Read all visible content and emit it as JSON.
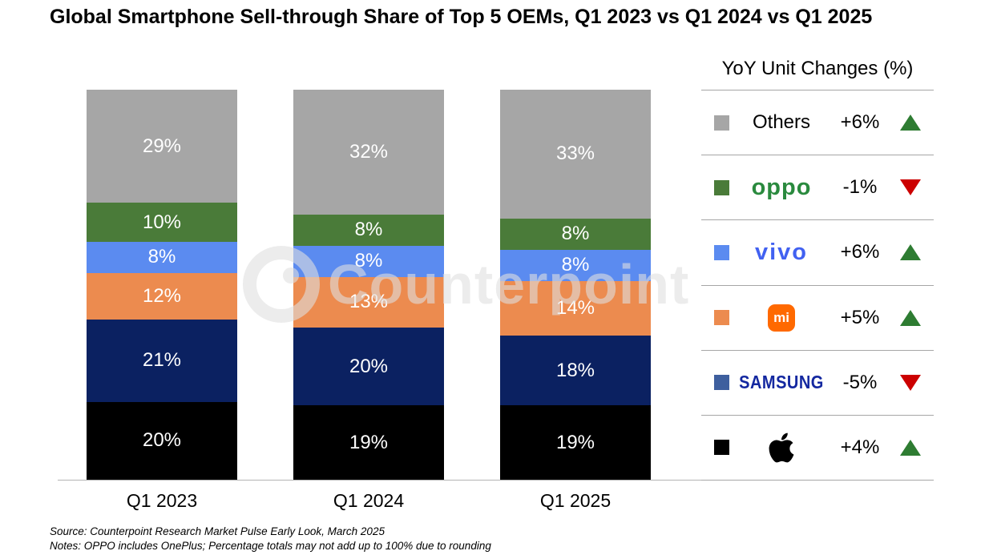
{
  "title": "Global Smartphone Sell-through Share of Top 5 OEMs, Q1 2023 vs Q1 2024 vs Q1 2025",
  "watermark": {
    "text": "Counterpoint"
  },
  "chart_data": {
    "type": "bar",
    "subtype": "stacked-100",
    "categories": [
      "Q1 2023",
      "Q1 2024",
      "Q1 2025"
    ],
    "value_suffix": "%",
    "stack_order": "bottom-to-top",
    "series": [
      {
        "name": "Apple",
        "color": "#000000",
        "values": [
          20,
          19,
          19
        ]
      },
      {
        "name": "Samsung",
        "color": "#0b2161",
        "values": [
          21,
          20,
          18
        ]
      },
      {
        "name": "Xiaomi",
        "color": "#ec8b4f",
        "values": [
          12,
          13,
          14
        ]
      },
      {
        "name": "vivo",
        "color": "#5b8bf0",
        "values": [
          8,
          8,
          8
        ]
      },
      {
        "name": "OPPO",
        "color": "#4a7b39",
        "values": [
          10,
          8,
          8
        ]
      },
      {
        "name": "Others",
        "color": "#a6a6a6",
        "values": [
          29,
          32,
          33
        ]
      }
    ],
    "ylim": [
      0,
      100
    ],
    "grid": false,
    "legend_position": "right"
  },
  "legend": {
    "header": "YoY Unit Changes (%)",
    "up_color": "#2e7c32",
    "down_color": "#cc0000",
    "rows": [
      {
        "brand": "Others",
        "change": "+6%",
        "direction": "up",
        "color": "#a6a6a6",
        "logo_color": "#000000"
      },
      {
        "brand": "oppo",
        "change": "-1%",
        "direction": "down",
        "color": "#4a7b39",
        "logo_color": "#2a8a3e"
      },
      {
        "brand": "vivo",
        "change": "+6%",
        "direction": "up",
        "color": "#5b8bf0",
        "logo_color": "#4161f1"
      },
      {
        "brand": "mi",
        "change": "+5%",
        "direction": "up",
        "color": "#ec8b4f",
        "logo_color": "#ff6900"
      },
      {
        "brand": "SAMSUNG",
        "change": "-5%",
        "direction": "down",
        "color": "#3e5f9e",
        "logo_color": "#1428a0"
      },
      {
        "brand": "Apple",
        "change": "+4%",
        "direction": "up",
        "color": "#000000",
        "logo_color": "#000000"
      }
    ]
  },
  "footer": {
    "source": "Source: Counterpoint Research Market Pulse Early Look, March 2025",
    "notes": "Notes: OPPO includes OnePlus; Percentage totals may not add up to 100% due to rounding"
  }
}
